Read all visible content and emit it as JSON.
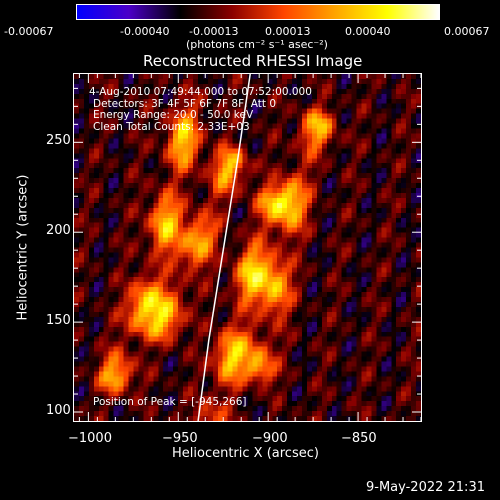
{
  "colorbar": {
    "tick_labels": [
      "-0.00067",
      "-0.00040",
      "-0.00013",
      "0.00013",
      "0.00040",
      "0.00067"
    ],
    "units": "(photons cm⁻² s⁻¹ asec⁻²)"
  },
  "chart_data": {
    "type": "heatmap",
    "title": "Reconstructed RHESSI Image",
    "xlabel": "Heliocentric X (arcsec)",
    "ylabel": "Heliocentric Y (arcsec)",
    "xlim": [
      -1008,
      -815
    ],
    "ylim": [
      95,
      288
    ],
    "x_ticks": [
      -1000,
      -950,
      -900,
      -850
    ],
    "y_ticks": [
      100,
      150,
      200,
      250
    ],
    "x_tick_labels": [
      "−1000",
      "−950",
      "−900",
      "−850"
    ],
    "y_tick_labels": [
      "100",
      "150",
      "200",
      "250"
    ],
    "value_range": [
      -0.00067,
      0.00067
    ],
    "colormap": [
      "#0000ff",
      "#4b00c8",
      "#000000",
      "#8b0000",
      "#ff4500",
      "#ffa500",
      "#ffff00",
      "#ffffff"
    ],
    "bright_ridges": [
      {
        "x": [
          -985,
          -965,
          -955,
          -943
        ],
        "y": [
          120,
          170,
          215,
          270
        ],
        "peak": 0.0006
      },
      {
        "x": [
          -960,
          -945,
          -935,
          -920
        ],
        "y": [
          145,
          180,
          205,
          240
        ],
        "peak": 0.00055
      },
      {
        "x": [
          -930,
          -918,
          -910,
          -898
        ],
        "y": [
          100,
          140,
          175,
          215
        ],
        "peak": 0.0006
      },
      {
        "x": [
          -905,
          -895,
          -885,
          -872
        ],
        "y": [
          125,
          175,
          225,
          260
        ],
        "peak": 0.00055
      }
    ],
    "peak_position": [
      -945,
      266
    ],
    "annotations": {
      "time_range": "4-Aug-2010 07:49:44.000 to 07:52:00.000",
      "detectors": "Detectors: 3F 4F 5F 6F 7F 8F, Att 0",
      "energy": "Energy Range: 20.0 - 50.0 keV",
      "clean": "Clean    Total Counts: 2.33E+03",
      "peak": "Position of Peak = [-945,266]"
    }
  },
  "footer": {
    "timestamp": "9-May-2022 21:31"
  }
}
